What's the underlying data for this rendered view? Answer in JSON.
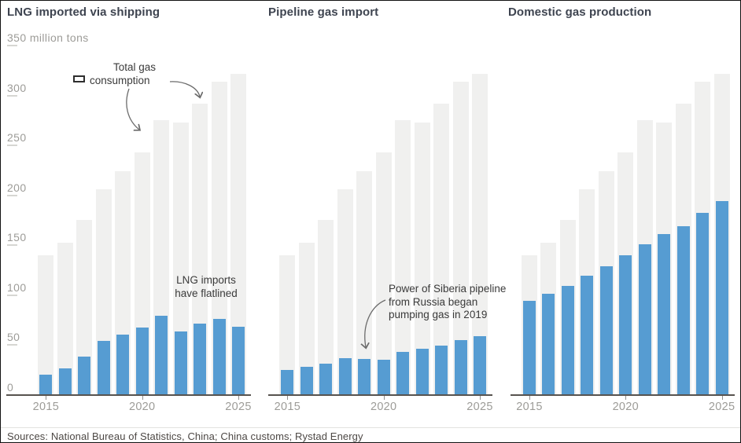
{
  "colors": {
    "bar_blue": "#569cd2",
    "bar_gray": "#f0f0ef",
    "axis": "#57534f",
    "muted_text": "#9d9c98",
    "title_text": "#3e4450",
    "note_text": "#3a3a3a",
    "source_text": "#4d4845"
  },
  "y_axis": {
    "unit": "million tons",
    "ticks": [
      {
        "value": 350,
        "label": "350 million tons"
      },
      {
        "value": 300,
        "label": "300"
      },
      {
        "value": 250,
        "label": "250"
      },
      {
        "value": 200,
        "label": "200"
      },
      {
        "value": 150,
        "label": "150"
      },
      {
        "value": 100,
        "label": "100"
      },
      {
        "value": 50,
        "label": "50"
      },
      {
        "value": 0,
        "label": "0"
      }
    ]
  },
  "x_axis": {
    "labeled_years": [
      "2015",
      "2020",
      "2025"
    ]
  },
  "annotations": {
    "legend": {
      "line1": "Total gas",
      "line2": "consumption",
      "swatch": "total-consumption-swatch"
    },
    "lng_note": "LNG imports\nhave flatlined",
    "siberia_note": "Power of Siberia pipeline\nfrom Russia began\npumping gas in 2019"
  },
  "footer": {
    "sources": "Sources: National Bureau of Statistics, China; China customs; Rystad Energy"
  },
  "chart_data": [
    {
      "type": "bar",
      "title": "LNG imported via shipping",
      "categories": [
        2015,
        2016,
        2017,
        2018,
        2019,
        2020,
        2021,
        2022,
        2023,
        2024,
        2025
      ],
      "series": [
        {
          "name": "Total gas consumption",
          "color": "#f0f0ef",
          "values": [
            140,
            152,
            175,
            206,
            224,
            243,
            275,
            273,
            292,
            314,
            322
          ]
        },
        {
          "name": "LNG imported via shipping",
          "color": "#569cd2",
          "values": [
            20,
            26,
            38,
            54,
            60,
            67,
            79,
            63,
            71,
            76,
            68
          ]
        }
      ],
      "ylabel": "million tons",
      "ylim": [
        0,
        350
      ],
      "grid": false,
      "legend_position": "top-left-annotation"
    },
    {
      "type": "bar",
      "title": "Pipeline gas import",
      "categories": [
        2015,
        2016,
        2017,
        2018,
        2019,
        2020,
        2021,
        2022,
        2023,
        2024,
        2025
      ],
      "series": [
        {
          "name": "Total gas consumption",
          "color": "#f0f0ef",
          "values": [
            140,
            152,
            175,
            206,
            224,
            243,
            275,
            273,
            292,
            314,
            322
          ]
        },
        {
          "name": "Pipeline gas import",
          "color": "#569cd2",
          "values": [
            25,
            28,
            31,
            37,
            36,
            35,
            43,
            46,
            49,
            55,
            59
          ]
        }
      ],
      "ylabel": "million tons",
      "ylim": [
        0,
        350
      ],
      "grid": false
    },
    {
      "type": "bar",
      "title": "Domestic gas production",
      "categories": [
        2015,
        2016,
        2017,
        2018,
        2019,
        2020,
        2021,
        2022,
        2023,
        2024,
        2025
      ],
      "series": [
        {
          "name": "Total gas consumption",
          "color": "#f0f0ef",
          "values": [
            140,
            152,
            175,
            206,
            224,
            243,
            275,
            273,
            292,
            314,
            322
          ]
        },
        {
          "name": "Domestic gas production",
          "color": "#569cd2",
          "values": [
            94,
            101,
            109,
            119,
            129,
            140,
            151,
            161,
            169,
            182,
            194
          ]
        }
      ],
      "ylabel": "million tons",
      "ylim": [
        0,
        350
      ],
      "grid": false
    }
  ]
}
